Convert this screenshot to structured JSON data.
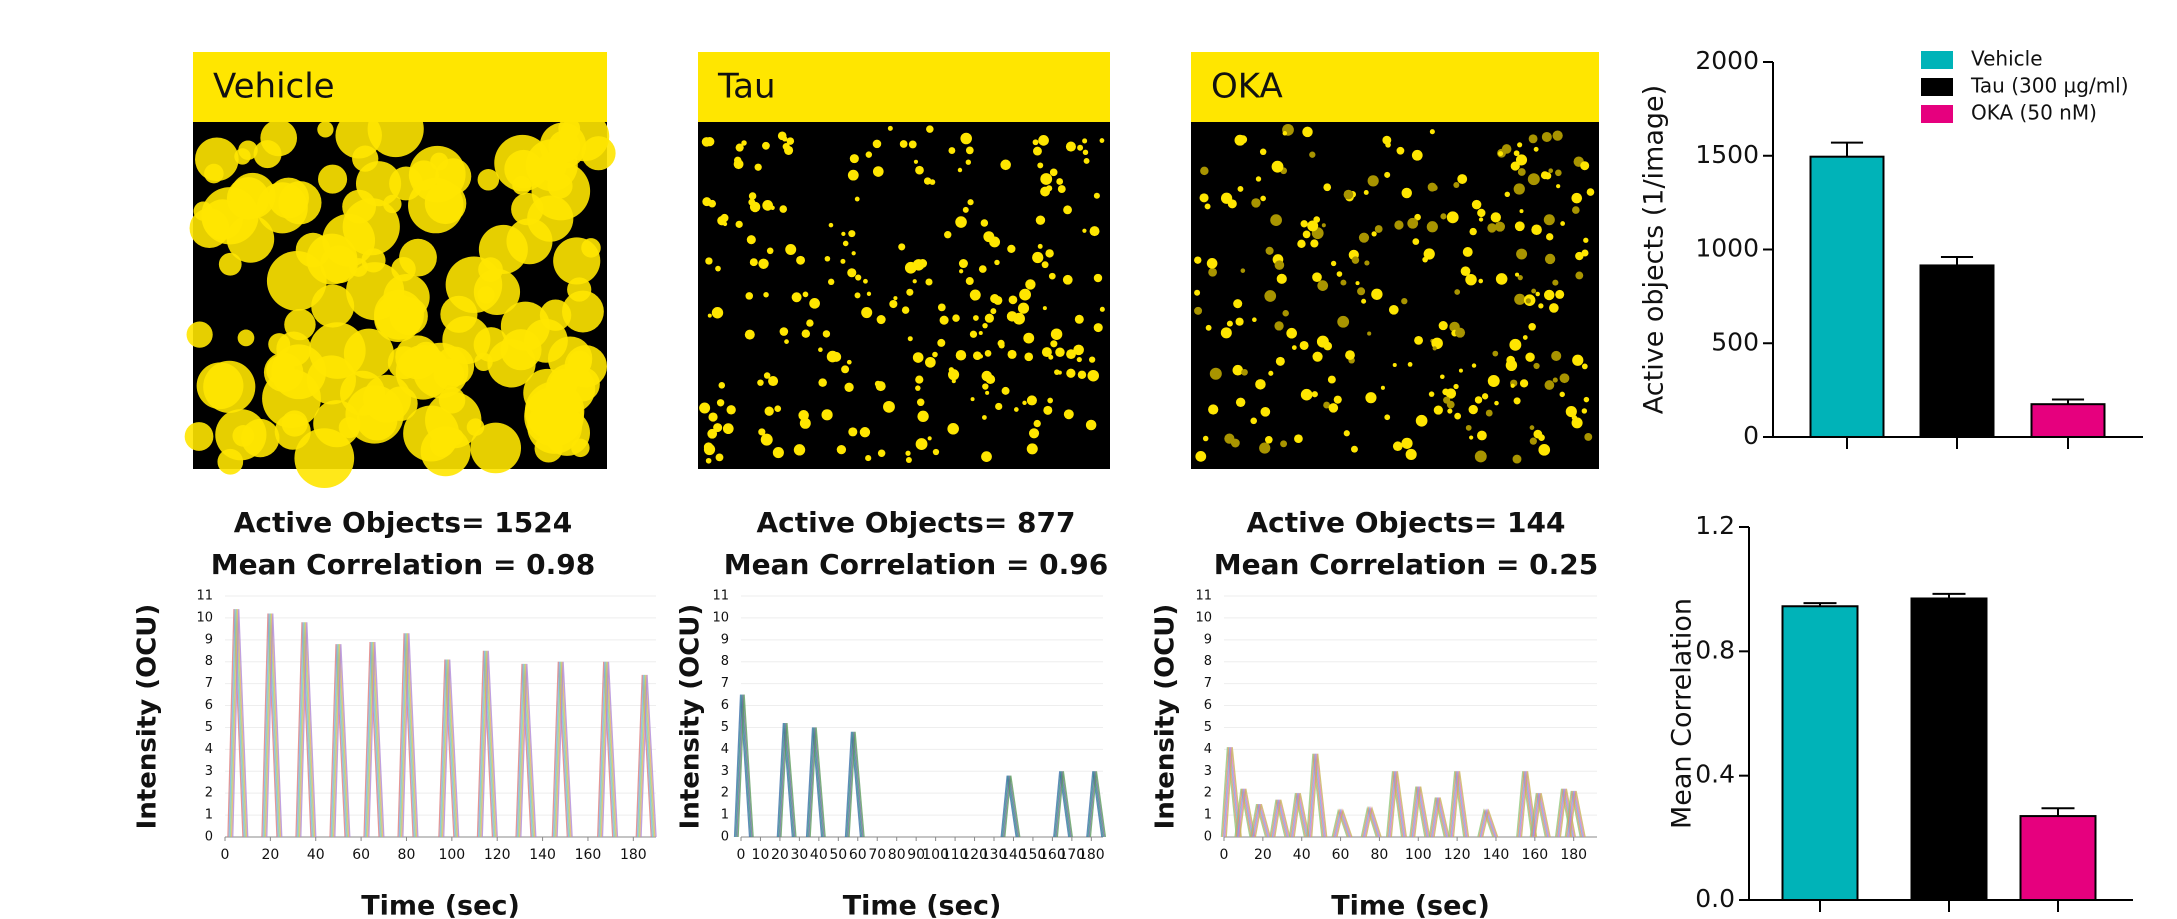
{
  "panels": [
    {
      "label": "Vehicle"
    },
    {
      "label": "Tau"
    },
    {
      "label": "OKA"
    }
  ],
  "chart_data": [
    {
      "type": "spike",
      "title_lines": [
        "Active Objects= 1524",
        "Mean Correlation = 0.98"
      ],
      "y_label": "Intensity (OCU)",
      "x_label": "Time (sec)",
      "x": [
        5,
        20,
        35,
        50,
        65,
        80,
        98,
        115,
        132,
        148,
        168,
        185
      ],
      "values": [
        10.4,
        10.2,
        9.8,
        8.8,
        8.9,
        9.3,
        8.1,
        8.5,
        7.9,
        8.0,
        8.0,
        7.4
      ],
      "colors": [
        "#e07a7a",
        "#7ab0e0",
        "#8fd18a",
        "#e0b060",
        "#b08ad8"
      ],
      "xlim": [
        0,
        190
      ],
      "xticks": [
        0,
        20,
        40,
        60,
        80,
        100,
        120,
        140,
        160,
        180
      ],
      "ylim": [
        0,
        11
      ],
      "yticks": [
        0,
        1,
        2,
        3,
        4,
        5,
        6,
        7,
        8,
        9,
        10,
        11
      ],
      "grid": true
    },
    {
      "type": "spike",
      "title_lines": [
        "Active Objects= 877",
        "Mean Correlation = 0.96"
      ],
      "y_label": "Intensity (OCU)",
      "x_label": "Time (sec)",
      "x": [
        1,
        23,
        38,
        58,
        138,
        165,
        182
      ],
      "values": [
        6.5,
        5.2,
        5.0,
        4.8,
        2.8,
        3.0,
        3.0
      ],
      "colors": [
        "#3a6ea8",
        "#2e8b8b",
        "#6a6a9a",
        "#5c9c5c"
      ],
      "xlim": [
        0,
        186
      ],
      "xticks": [
        0,
        10,
        20,
        30,
        40,
        50,
        60,
        70,
        80,
        90,
        100,
        110,
        120,
        130,
        140,
        150,
        160,
        170,
        180
      ],
      "ylim": [
        0,
        11
      ],
      "yticks": [
        0,
        1,
        2,
        3,
        4,
        5,
        6,
        7,
        8,
        9,
        10,
        11
      ],
      "grid": true
    },
    {
      "type": "spike",
      "title_lines": [
        "Active Objects= 144",
        "Mean Correlation = 0.25"
      ],
      "y_label": "Intensity (OCU)",
      "x_label": "Time (sec)",
      "x": [
        3,
        10,
        18,
        28,
        38,
        47,
        60,
        75,
        88,
        100,
        110,
        120,
        135,
        155,
        162,
        175,
        180
      ],
      "values": [
        4.1,
        2.2,
        1.5,
        1.7,
        2.0,
        3.8,
        1.2,
        1.3,
        3.0,
        2.3,
        1.8,
        3.0,
        1.2,
        3.0,
        2.0,
        2.2,
        2.1
      ],
      "colors": [
        "#8fc97a",
        "#e0906a",
        "#7aa8e0",
        "#d87ac0",
        "#c9b45a"
      ],
      "xlim": [
        0,
        192
      ],
      "xticks": [
        0,
        20,
        40,
        60,
        80,
        100,
        120,
        140,
        160,
        180
      ],
      "ylim": [
        0,
        11
      ],
      "yticks": [
        0,
        1,
        2,
        3,
        4,
        5,
        6,
        7,
        8,
        9,
        10,
        11
      ],
      "grid": true
    },
    {
      "type": "bar",
      "y_label": "Active objects (1/image)",
      "legend": "top-right",
      "series": [
        {
          "name": "Vehicle",
          "color": "#00b3b8",
          "values": [
            1495
          ],
          "errors": [
            75
          ]
        },
        {
          "name": "Tau (300 µg/ml)",
          "color": "#000000",
          "values": [
            915
          ],
          "errors": [
            45
          ]
        },
        {
          "name": "OKA (50 nM)",
          "color": "#e6007e",
          "values": [
            175
          ],
          "errors": [
            25
          ]
        }
      ],
      "ylim": [
        0,
        2000
      ],
      "yticks": [
        0,
        500,
        1000,
        1500,
        2000
      ]
    },
    {
      "type": "bar",
      "y_label": "Mean Correlation",
      "series": [
        {
          "name": "Vehicle",
          "color": "#00b3b8",
          "values": [
            0.945
          ],
          "errors": [
            0.01
          ]
        },
        {
          "name": "Tau (300 µg/ml)",
          "color": "#000000",
          "values": [
            0.97
          ],
          "errors": [
            0.015
          ]
        },
        {
          "name": "OKA (50 nM)",
          "color": "#e6007e",
          "values": [
            0.27
          ],
          "errors": [
            0.025
          ]
        }
      ],
      "ylim": [
        0,
        1.2
      ],
      "yticks": [
        {
          "value": 0,
          "label": "0.0"
        },
        0.4,
        0.8,
        1.2
      ]
    }
  ]
}
